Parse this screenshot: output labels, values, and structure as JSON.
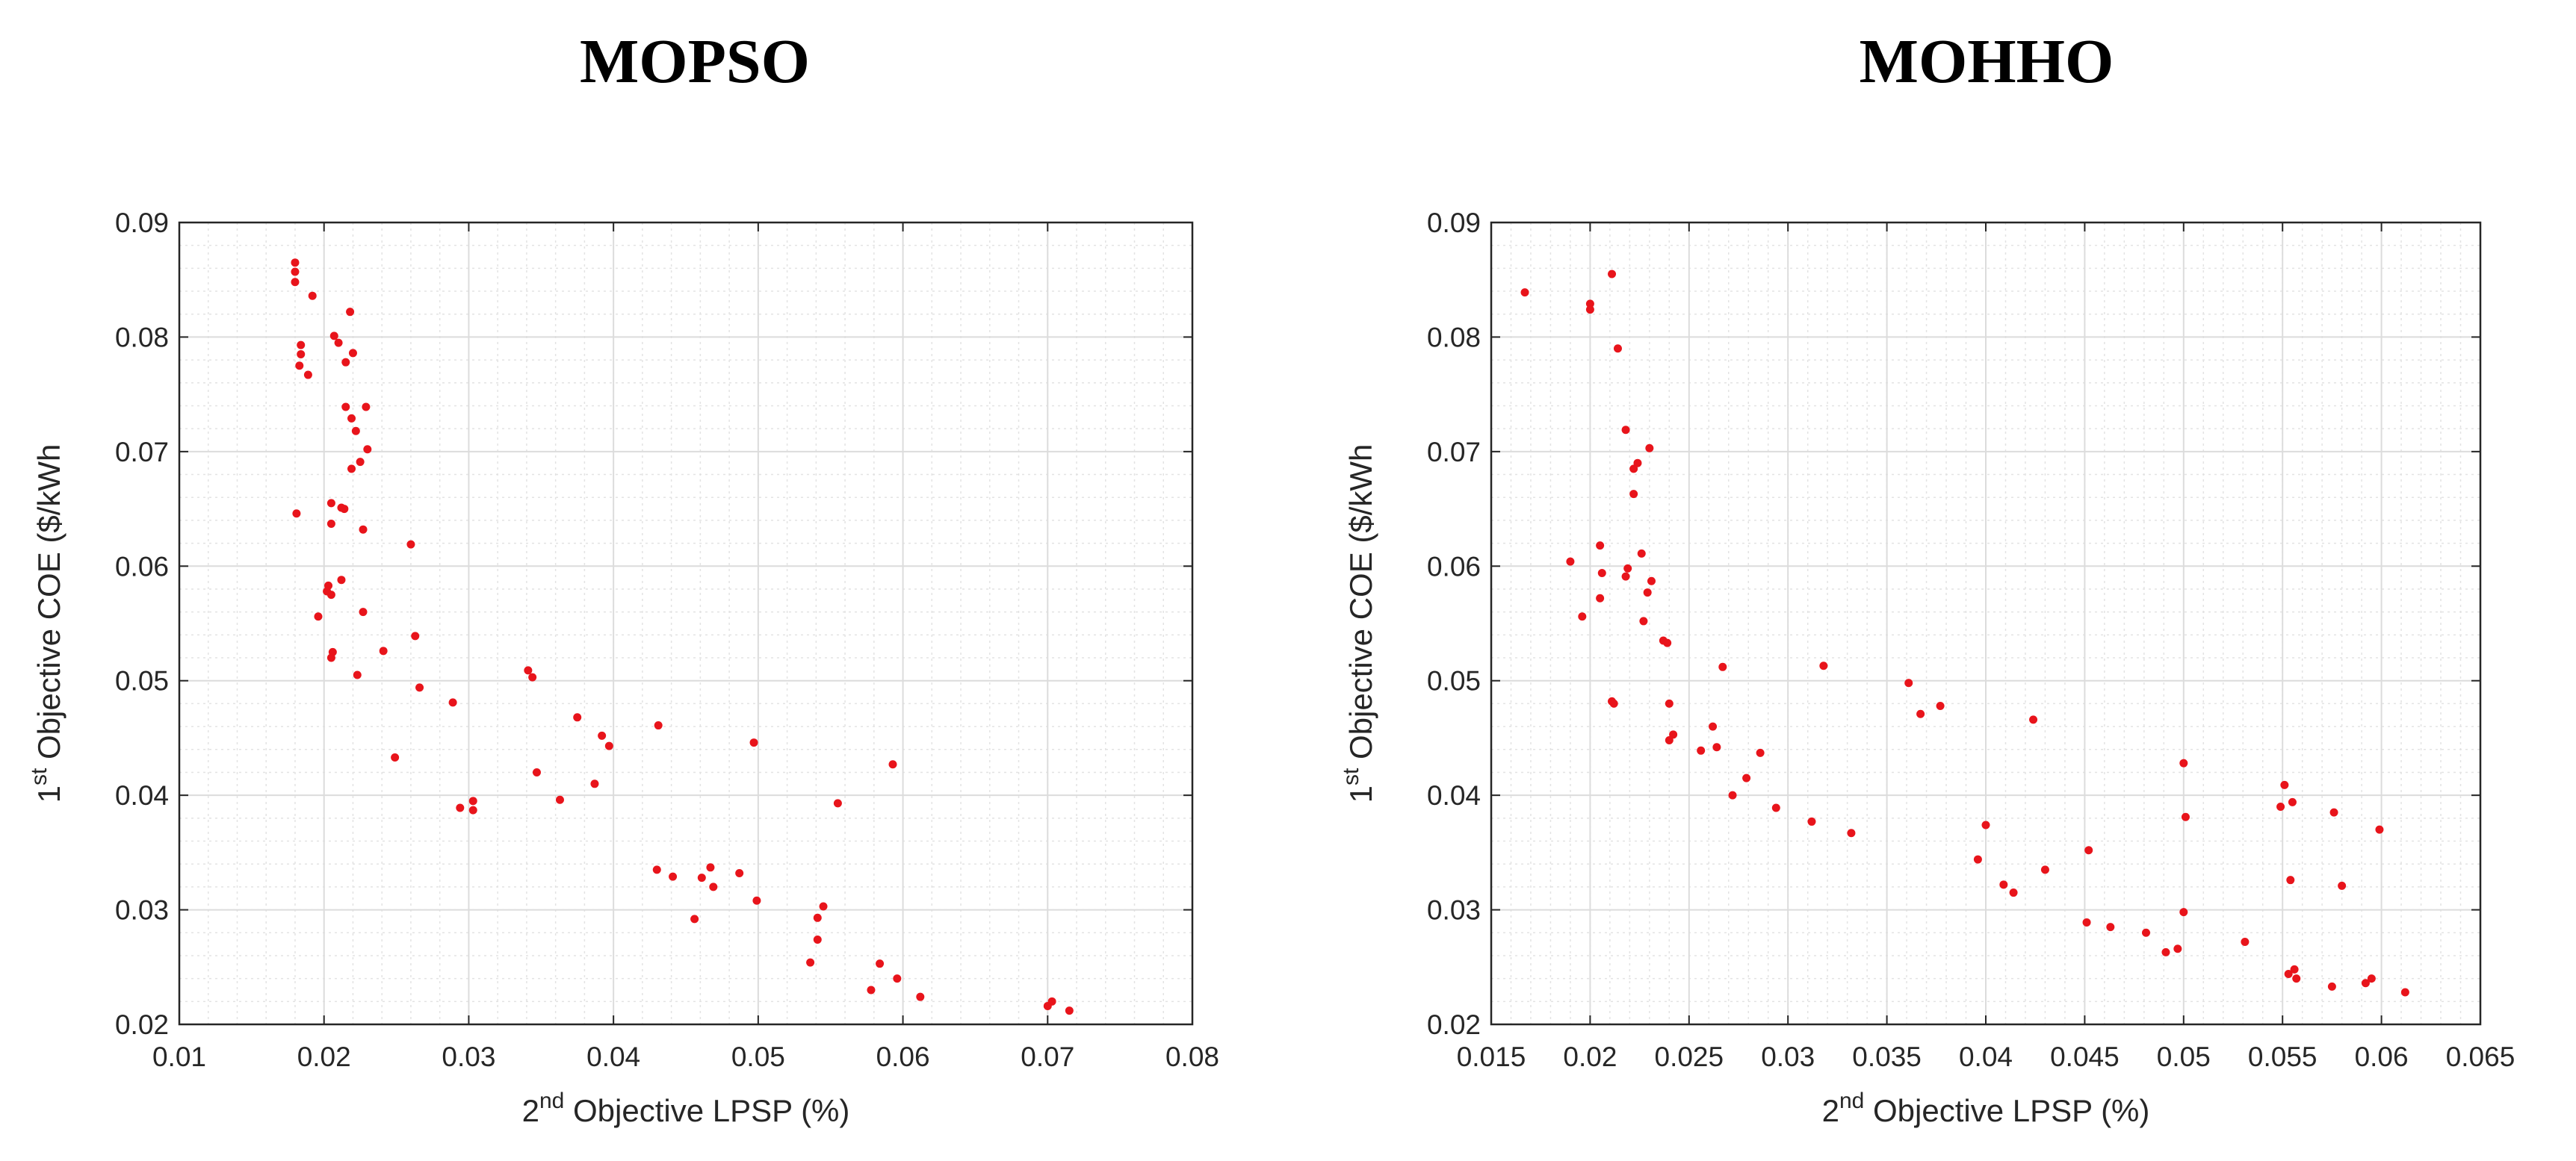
{
  "chart_data": [
    {
      "type": "scatter",
      "title": "MOPSO",
      "xlabel": {
        "prefix": "2",
        "sup": "nd",
        "text": " Objective LPSP (%)"
      },
      "ylabel": {
        "prefix": "1",
        "sup": "st",
        "text": " Objective COE ($/kWh"
      },
      "xlim": [
        0.01,
        0.08
      ],
      "ylim": [
        0.02,
        0.09
      ],
      "xticks": [
        0.01,
        0.02,
        0.03,
        0.04,
        0.05,
        0.06,
        0.07,
        0.08
      ],
      "xtick_labels": [
        "0.01",
        "0.02",
        "0.03",
        "0.04",
        "0.05",
        "0.06",
        "0.07",
        "0.08"
      ],
      "yticks": [
        0.02,
        0.03,
        0.04,
        0.05,
        0.06,
        0.07,
        0.08,
        0.09
      ],
      "ytick_labels": [
        "0.02",
        "0.03",
        "0.04",
        "0.05",
        "0.06",
        "0.07",
        "0.08",
        "0.09"
      ],
      "grid": true,
      "minor_grid": true,
      "marker_color": "#e8141b",
      "points": [
        [
          0.018,
          0.0865
        ],
        [
          0.018,
          0.0857
        ],
        [
          0.018,
          0.0848
        ],
        [
          0.0192,
          0.0836
        ],
        [
          0.0218,
          0.0822
        ],
        [
          0.0184,
          0.0793
        ],
        [
          0.0184,
          0.0785
        ],
        [
          0.0207,
          0.0801
        ],
        [
          0.021,
          0.0795
        ],
        [
          0.022,
          0.0786
        ],
        [
          0.0183,
          0.0775
        ],
        [
          0.0189,
          0.0767
        ],
        [
          0.0215,
          0.0778
        ],
        [
          0.0229,
          0.0739
        ],
        [
          0.0215,
          0.0739
        ],
        [
          0.0219,
          0.0729
        ],
        [
          0.0222,
          0.0718
        ],
        [
          0.023,
          0.0702
        ],
        [
          0.0225,
          0.0691
        ],
        [
          0.0219,
          0.0685
        ],
        [
          0.0181,
          0.0646
        ],
        [
          0.0205,
          0.0655
        ],
        [
          0.0214,
          0.065
        ],
        [
          0.0212,
          0.0651
        ],
        [
          0.0205,
          0.0637
        ],
        [
          0.0227,
          0.0632
        ],
        [
          0.026,
          0.0619
        ],
        [
          0.0212,
          0.0588
        ],
        [
          0.0203,
          0.0583
        ],
        [
          0.0202,
          0.0578
        ],
        [
          0.0205,
          0.0575
        ],
        [
          0.0196,
          0.0556
        ],
        [
          0.0227,
          0.056
        ],
        [
          0.0263,
          0.0539
        ],
        [
          0.0241,
          0.0526
        ],
        [
          0.0206,
          0.0525
        ],
        [
          0.0205,
          0.052
        ],
        [
          0.0223,
          0.0505
        ],
        [
          0.0266,
          0.0494
        ],
        [
          0.0289,
          0.0481
        ],
        [
          0.0341,
          0.0509
        ],
        [
          0.0344,
          0.0503
        ],
        [
          0.0375,
          0.0468
        ],
        [
          0.0392,
          0.0452
        ],
        [
          0.0397,
          0.0443
        ],
        [
          0.0431,
          0.0461
        ],
        [
          0.0497,
          0.0446
        ],
        [
          0.0249,
          0.0433
        ],
        [
          0.0347,
          0.042
        ],
        [
          0.0387,
          0.041
        ],
        [
          0.0363,
          0.0396
        ],
        [
          0.0303,
          0.0395
        ],
        [
          0.0294,
          0.0389
        ],
        [
          0.0303,
          0.0387
        ],
        [
          0.0555,
          0.0393
        ],
        [
          0.0593,
          0.0427
        ],
        [
          0.043,
          0.0335
        ],
        [
          0.0441,
          0.0329
        ],
        [
          0.0461,
          0.0328
        ],
        [
          0.0467,
          0.0337
        ],
        [
          0.0469,
          0.032
        ],
        [
          0.0487,
          0.0332
        ],
        [
          0.0499,
          0.0308
        ],
        [
          0.0456,
          0.0292
        ],
        [
          0.0545,
          0.0303
        ],
        [
          0.0541,
          0.0293
        ],
        [
          0.0541,
          0.0274
        ],
        [
          0.0536,
          0.0254
        ],
        [
          0.0584,
          0.0253
        ],
        [
          0.0596,
          0.024
        ],
        [
          0.0578,
          0.023
        ],
        [
          0.0612,
          0.0224
        ],
        [
          0.0703,
          0.022
        ],
        [
          0.07,
          0.0216
        ],
        [
          0.0715,
          0.0212
        ]
      ]
    },
    {
      "type": "scatter",
      "title": "MOHHO",
      "xlabel": {
        "prefix": "2",
        "sup": "nd",
        "text": " Objective LPSP (%)"
      },
      "ylabel": {
        "prefix": "1",
        "sup": "st",
        "text": " Objective COE ($/kWh"
      },
      "xlim": [
        0.015,
        0.065
      ],
      "ylim": [
        0.02,
        0.09
      ],
      "xticks": [
        0.015,
        0.02,
        0.025,
        0.03,
        0.035,
        0.04,
        0.045,
        0.05,
        0.055,
        0.06,
        0.065
      ],
      "xtick_labels": [
        "0.015",
        "0.02",
        "0.025",
        "0.03",
        "0.035",
        "0.04",
        "0.045",
        "0.05",
        "0.055",
        "0.06",
        "0.065"
      ],
      "yticks": [
        0.02,
        0.03,
        0.04,
        0.05,
        0.06,
        0.07,
        0.08,
        0.09
      ],
      "ytick_labels": [
        "0.02",
        "0.03",
        "0.04",
        "0.05",
        "0.06",
        "0.07",
        "0.08",
        "0.09"
      ],
      "grid": true,
      "minor_grid": true,
      "marker_color": "#e8141b",
      "points": [
        [
          0.0167,
          0.0839
        ],
        [
          0.02,
          0.0829
        ],
        [
          0.02,
          0.0824
        ],
        [
          0.0211,
          0.0855
        ],
        [
          0.0214,
          0.079
        ],
        [
          0.0218,
          0.0719
        ],
        [
          0.023,
          0.0703
        ],
        [
          0.0224,
          0.069
        ],
        [
          0.0222,
          0.0685
        ],
        [
          0.0222,
          0.0663
        ],
        [
          0.0205,
          0.0618
        ],
        [
          0.0226,
          0.0611
        ],
        [
          0.019,
          0.0604
        ],
        [
          0.0206,
          0.0594
        ],
        [
          0.0219,
          0.0598
        ],
        [
          0.0218,
          0.0591
        ],
        [
          0.0231,
          0.0587
        ],
        [
          0.0229,
          0.0577
        ],
        [
          0.0205,
          0.0572
        ],
        [
          0.0196,
          0.0556
        ],
        [
          0.0227,
          0.0552
        ],
        [
          0.0237,
          0.0535
        ],
        [
          0.0239,
          0.0533
        ],
        [
          0.0267,
          0.0512
        ],
        [
          0.0318,
          0.0513
        ],
        [
          0.0361,
          0.0498
        ],
        [
          0.0211,
          0.0482
        ],
        [
          0.0212,
          0.048
        ],
        [
          0.024,
          0.048
        ],
        [
          0.0367,
          0.0471
        ],
        [
          0.0377,
          0.0478
        ],
        [
          0.0424,
          0.0466
        ],
        [
          0.0262,
          0.046
        ],
        [
          0.0242,
          0.0453
        ],
        [
          0.024,
          0.0448
        ],
        [
          0.0264,
          0.0442
        ],
        [
          0.0256,
          0.0439
        ],
        [
          0.0286,
          0.0437
        ],
        [
          0.0279,
          0.0415
        ],
        [
          0.0272,
          0.04
        ],
        [
          0.0294,
          0.0389
        ],
        [
          0.0312,
          0.0377
        ],
        [
          0.0332,
          0.0367
        ],
        [
          0.04,
          0.0374
        ],
        [
          0.0396,
          0.0344
        ],
        [
          0.0409,
          0.0322
        ],
        [
          0.0414,
          0.0315
        ],
        [
          0.043,
          0.0335
        ],
        [
          0.0452,
          0.0352
        ],
        [
          0.05,
          0.0428
        ],
        [
          0.0501,
          0.0381
        ],
        [
          0.0551,
          0.0409
        ],
        [
          0.0549,
          0.039
        ],
        [
          0.0555,
          0.0394
        ],
        [
          0.0576,
          0.0385
        ],
        [
          0.0599,
          0.037
        ],
        [
          0.0554,
          0.0326
        ],
        [
          0.058,
          0.0321
        ],
        [
          0.05,
          0.0298
        ],
        [
          0.0451,
          0.0289
        ],
        [
          0.0463,
          0.0285
        ],
        [
          0.0481,
          0.028
        ],
        [
          0.0491,
          0.0263
        ],
        [
          0.0497,
          0.0266
        ],
        [
          0.0531,
          0.0272
        ],
        [
          0.0553,
          0.0244
        ],
        [
          0.0556,
          0.0248
        ],
        [
          0.0557,
          0.024
        ],
        [
          0.0575,
          0.0233
        ],
        [
          0.0592,
          0.0236
        ],
        [
          0.0595,
          0.024
        ],
        [
          0.0612,
          0.0228
        ]
      ]
    }
  ]
}
